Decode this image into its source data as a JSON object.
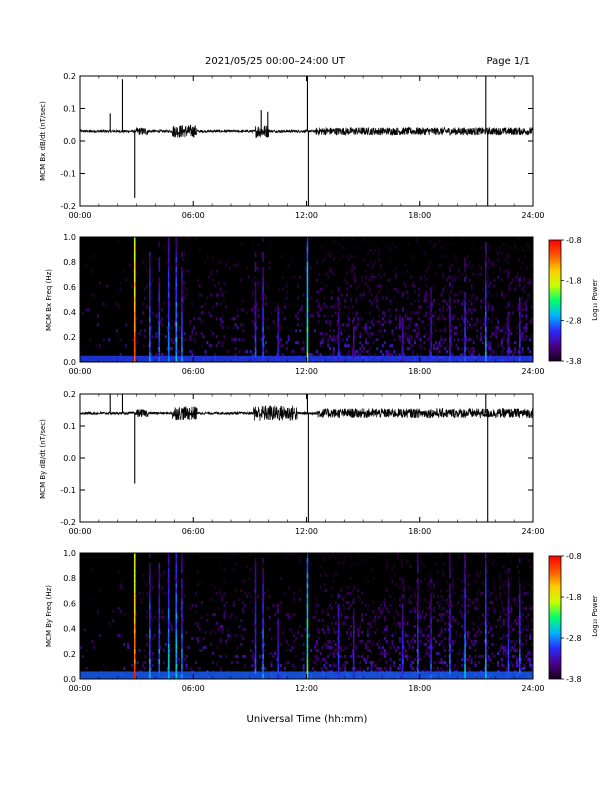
{
  "header": {
    "title": "2021/05/25  00:00–24:00 UT",
    "page_label": "Page 1/1"
  },
  "xlabel": "Universal Time (hh:mm)",
  "colors": {
    "trace": "#000000",
    "spectrogram_background": "#000000",
    "colormap": [
      "#16001a",
      "#4b0088",
      "#2a2cff",
      "#00b4ff",
      "#00ff6a",
      "#c8ff00",
      "#ffcc00",
      "#ff5500",
      "#ff0000"
    ]
  },
  "chart_data": [
    {
      "type": "line",
      "name": "MCM Bx dB/dt",
      "ylabel": "MCM Bx dB/dt (nT/sec)",
      "xlim": [
        0,
        24
      ],
      "ylim": [
        -0.2,
        0.2
      ],
      "xticks": [
        "00:00",
        "06:00",
        "12:00",
        "18:00",
        "24:00"
      ],
      "yticks": [
        "-0.2",
        "-0.1",
        "0.0",
        "0.1",
        "0.2"
      ],
      "baseline": 0.03,
      "quiet_noise": 0.004,
      "noisy_intervals": [
        {
          "start": 3.0,
          "end": 3.6,
          "amplitude": 0.012
        },
        {
          "start": 4.9,
          "end": 6.2,
          "amplitude": 0.02
        },
        {
          "start": 9.3,
          "end": 10.0,
          "amplitude": 0.02
        },
        {
          "start": 12.5,
          "end": 24.0,
          "amplitude": 0.012
        }
      ],
      "spikes": [
        {
          "x": 1.6,
          "y": 0.085
        },
        {
          "x": 2.25,
          "y": 0.19
        },
        {
          "x": 2.9,
          "y": -0.175
        },
        {
          "x": 9.6,
          "y": 0.095
        },
        {
          "x": 9.95,
          "y": 0.09
        },
        {
          "x": 12.05,
          "y": 0.215
        },
        {
          "x": 12.1,
          "y": -0.215
        },
        {
          "x": 21.5,
          "y": 0.215
        },
        {
          "x": 21.6,
          "y": -0.215
        }
      ]
    },
    {
      "type": "heatmap",
      "name": "MCM Bx Freq",
      "ylabel": "MCM Bx Freq (Hz)",
      "colorbar_label": "Log₁₀ Power",
      "colorbar_ticks": [
        "-0.8",
        "-1.8",
        "-2.8",
        "-3.8"
      ],
      "xlim": [
        0,
        24
      ],
      "ylim": [
        0,
        1.0
      ],
      "xticks": [
        "00:00",
        "06:00",
        "12:00",
        "18:00",
        "24:00"
      ],
      "yticks": [
        "0.0",
        "0.2",
        "0.4",
        "0.6",
        "0.8",
        "1.0"
      ],
      "vmin": -3.8,
      "vmax": -0.8,
      "base_power": -3.8,
      "floor_band": {
        "fmax": 0.05,
        "power": -3.0
      },
      "bursts": [
        {
          "t": 2.9,
          "width": 0.08,
          "power": -0.9
        },
        {
          "t": 3.7,
          "width": 0.06,
          "power": -2.6
        },
        {
          "t": 4.2,
          "width": 0.06,
          "power": -2.7
        },
        {
          "t": 4.7,
          "width": 0.07,
          "power": -2.5
        },
        {
          "t": 5.1,
          "width": 0.08,
          "power": -2.4
        },
        {
          "t": 5.4,
          "width": 0.06,
          "power": -2.7
        },
        {
          "t": 9.3,
          "width": 0.08,
          "power": -2.8
        },
        {
          "t": 9.7,
          "width": 0.06,
          "power": -2.7
        },
        {
          "t": 10.5,
          "width": 0.06,
          "power": -3.0
        },
        {
          "t": 12.05,
          "width": 0.08,
          "power": -2.0
        },
        {
          "t": 13.7,
          "width": 0.06,
          "power": -3.0
        },
        {
          "t": 14.5,
          "width": 0.06,
          "power": -3.1
        },
        {
          "t": 17.1,
          "width": 0.06,
          "power": -3.0
        },
        {
          "t": 18.6,
          "width": 0.06,
          "power": -3.0
        },
        {
          "t": 19.6,
          "width": 0.06,
          "power": -2.9
        },
        {
          "t": 20.4,
          "width": 0.06,
          "power": -2.8
        },
        {
          "t": 21.5,
          "width": 0.08,
          "power": -2.6
        },
        {
          "t": 22.7,
          "width": 0.06,
          "power": -3.0
        },
        {
          "t": 23.3,
          "width": 0.06,
          "power": -2.9
        }
      ]
    },
    {
      "type": "line",
      "name": "MCM By dB/dt",
      "ylabel": "MCM By dB/dt (nT/sec)",
      "xlim": [
        0,
        24
      ],
      "ylim": [
        -0.2,
        0.2
      ],
      "xticks": [
        "00:00",
        "06:00",
        "12:00",
        "18:00",
        "24:00"
      ],
      "yticks": [
        "-0.2",
        "-0.1",
        "0.0",
        "0.1",
        "0.2"
      ],
      "baseline": 0.14,
      "quiet_noise": 0.004,
      "noisy_intervals": [
        {
          "start": 3.0,
          "end": 3.6,
          "amplitude": 0.012
        },
        {
          "start": 4.9,
          "end": 6.2,
          "amplitude": 0.022
        },
        {
          "start": 9.2,
          "end": 11.5,
          "amplitude": 0.025
        },
        {
          "start": 12.5,
          "end": 24.0,
          "amplitude": 0.015
        }
      ],
      "spikes": [
        {
          "x": 1.6,
          "y": 0.2
        },
        {
          "x": 2.25,
          "y": 0.2
        },
        {
          "x": 2.9,
          "y": -0.08
        },
        {
          "x": 12.05,
          "y": 0.215
        },
        {
          "x": 12.1,
          "y": -0.215
        },
        {
          "x": 21.5,
          "y": 0.215
        },
        {
          "x": 21.6,
          "y": -0.215
        }
      ]
    },
    {
      "type": "heatmap",
      "name": "MCM By Freq",
      "ylabel": "MCM By Freq (Hz)",
      "colorbar_label": "Log₁₀ Power",
      "colorbar_ticks": [
        "-0.8",
        "-1.8",
        "-2.8",
        "-3.8"
      ],
      "xlim": [
        0,
        24
      ],
      "ylim": [
        0,
        1.0
      ],
      "xticks": [
        "00:00",
        "06:00",
        "12:00",
        "18:00",
        "24:00"
      ],
      "yticks": [
        "0.0",
        "0.2",
        "0.4",
        "0.6",
        "0.8",
        "1.0"
      ],
      "vmin": -3.8,
      "vmax": -0.8,
      "base_power": -3.8,
      "floor_band": {
        "fmax": 0.06,
        "power": -2.9
      },
      "bursts": [
        {
          "t": 2.9,
          "width": 0.08,
          "power": -0.9
        },
        {
          "t": 3.7,
          "width": 0.06,
          "power": -2.5
        },
        {
          "t": 4.2,
          "width": 0.06,
          "power": -2.6
        },
        {
          "t": 4.7,
          "width": 0.07,
          "power": -2.4
        },
        {
          "t": 5.1,
          "width": 0.08,
          "power": -2.3
        },
        {
          "t": 5.4,
          "width": 0.06,
          "power": -2.6
        },
        {
          "t": 9.3,
          "width": 0.08,
          "power": -2.7
        },
        {
          "t": 9.7,
          "width": 0.06,
          "power": -2.6
        },
        {
          "t": 10.5,
          "width": 0.06,
          "power": -2.9
        },
        {
          "t": 12.05,
          "width": 0.08,
          "power": -2.0
        },
        {
          "t": 13.7,
          "width": 0.06,
          "power": -2.8
        },
        {
          "t": 14.5,
          "width": 0.06,
          "power": -2.9
        },
        {
          "t": 17.1,
          "width": 0.06,
          "power": -2.8
        },
        {
          "t": 17.9,
          "width": 0.06,
          "power": -2.7
        },
        {
          "t": 18.6,
          "width": 0.06,
          "power": -2.8
        },
        {
          "t": 19.6,
          "width": 0.06,
          "power": -2.7
        },
        {
          "t": 20.4,
          "width": 0.06,
          "power": -2.5
        },
        {
          "t": 21.5,
          "width": 0.08,
          "power": -2.5
        },
        {
          "t": 22.7,
          "width": 0.06,
          "power": -2.8
        },
        {
          "t": 23.3,
          "width": 0.06,
          "power": -2.7
        }
      ]
    }
  ]
}
